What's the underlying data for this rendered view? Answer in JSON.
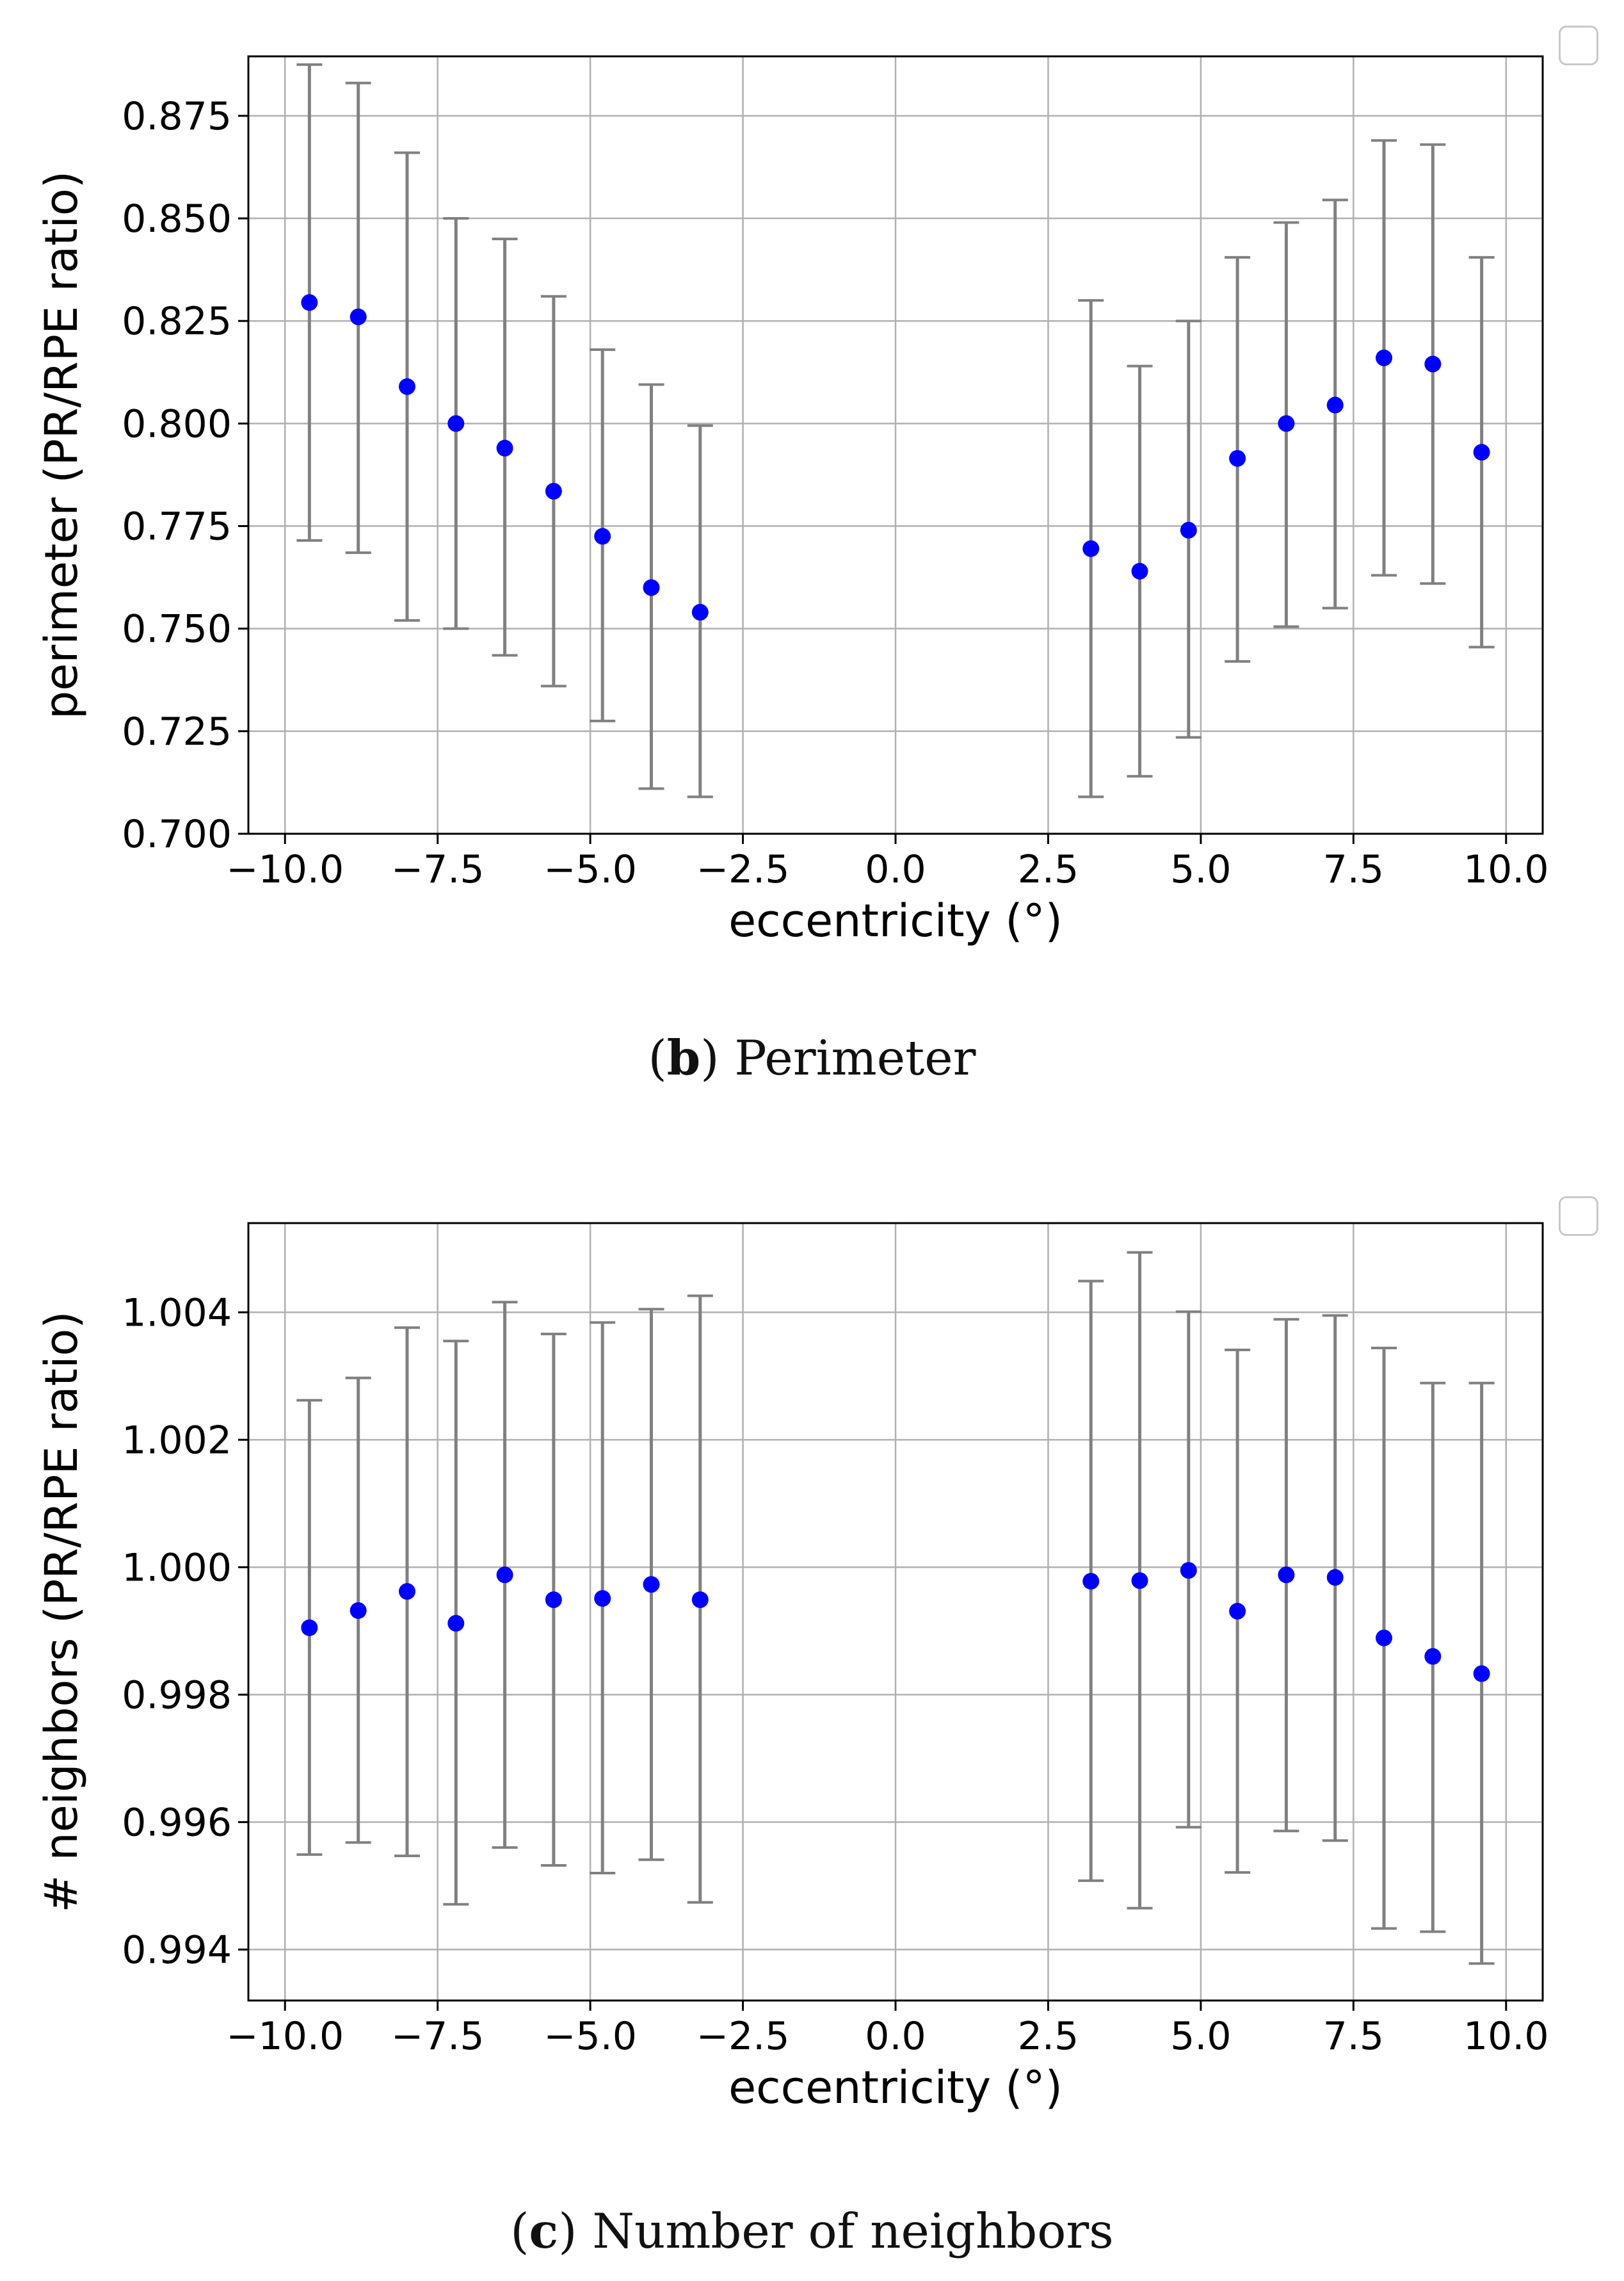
{
  "captions": [
    {
      "letter": "b",
      "text": " Perimeter"
    },
    {
      "letter": "c",
      "text": " Number of neighbors"
    }
  ],
  "chart_data": [
    {
      "type": "scatter",
      "xlabel": "eccentricity (°)",
      "ylabel": "perimeter (PR/RPE ratio)",
      "xlim": [
        -10.6,
        10.6
      ],
      "ylim": [
        0.7,
        0.8895
      ],
      "xticks": [
        -10.0,
        -7.5,
        -5.0,
        -2.5,
        0.0,
        2.5,
        5.0,
        7.5,
        10.0
      ],
      "xtick_labels": [
        "−10.0",
        "−7.5",
        "−5.0",
        "−2.5",
        "0.0",
        "2.5",
        "5.0",
        "7.5",
        "10.0"
      ],
      "yticks": [
        0.7,
        0.725,
        0.75,
        0.775,
        0.8,
        0.825,
        0.85,
        0.875
      ],
      "ytick_labels": [
        "0.700",
        "0.725",
        "0.750",
        "0.775",
        "0.800",
        "0.825",
        "0.850",
        "0.875"
      ],
      "grid": true,
      "point_color": "#0000ff",
      "errorbar_color": "#808080",
      "x": [
        -9.6,
        -8.8,
        -8.0,
        -7.2,
        -6.4,
        -5.6,
        -4.8,
        -4.0,
        -3.2,
        3.2,
        4.0,
        4.8,
        5.6,
        6.4,
        7.2,
        8.0,
        8.8,
        9.6
      ],
      "y": [
        0.8295,
        0.826,
        0.809,
        0.8,
        0.794,
        0.7835,
        0.7725,
        0.76,
        0.754,
        0.7695,
        0.764,
        0.774,
        0.7915,
        0.8,
        0.8045,
        0.816,
        0.8145,
        0.793
      ],
      "y_low": [
        0.7715,
        0.7685,
        0.752,
        0.75,
        0.7435,
        0.736,
        0.7275,
        0.711,
        0.709,
        0.709,
        0.714,
        0.7235,
        0.742,
        0.7505,
        0.755,
        0.763,
        0.761,
        0.7455
      ],
      "y_high": [
        0.8875,
        0.883,
        0.866,
        0.85,
        0.845,
        0.831,
        0.818,
        0.8095,
        0.7995,
        0.83,
        0.814,
        0.825,
        0.8405,
        0.849,
        0.8545,
        0.869,
        0.868,
        0.8405
      ]
    },
    {
      "type": "scatter",
      "xlabel": "eccentricity (°)",
      "ylabel": "# neighbors (PR/RPE ratio)",
      "xlim": [
        -10.6,
        10.6
      ],
      "ylim": [
        0.9932,
        1.0054
      ],
      "xticks": [
        -10.0,
        -7.5,
        -5.0,
        -2.5,
        0.0,
        2.5,
        5.0,
        7.5,
        10.0
      ],
      "xtick_labels": [
        "−10.0",
        "−7.5",
        "−5.0",
        "−2.5",
        "0.0",
        "2.5",
        "5.0",
        "7.5",
        "10.0"
      ],
      "yticks": [
        0.994,
        0.996,
        0.998,
        1.0,
        1.002,
        1.004
      ],
      "ytick_labels": [
        "0.994",
        "0.996",
        "0.998",
        "1.000",
        "1.002",
        "1.004"
      ],
      "grid": true,
      "point_color": "#0000ff",
      "errorbar_color": "#808080",
      "x": [
        -9.6,
        -8.8,
        -8.0,
        -7.2,
        -6.4,
        -5.6,
        -4.8,
        -4.0,
        -3.2,
        3.2,
        4.0,
        4.8,
        5.6,
        6.4,
        7.2,
        8.0,
        8.8,
        9.6
      ],
      "y": [
        0.99905,
        0.99932,
        0.99962,
        0.99912,
        0.99988,
        0.99949,
        0.99951,
        0.99973,
        0.99949,
        0.99978,
        0.99979,
        0.99995,
        0.99931,
        0.99988,
        0.99984,
        0.99889,
        0.9986,
        0.99833
      ],
      "y_low": [
        0.99549,
        0.99568,
        0.99547,
        0.99471,
        0.9956,
        0.99532,
        0.9952,
        0.99541,
        0.99474,
        0.99508,
        0.99465,
        0.99592,
        0.99521,
        0.99586,
        0.99571,
        0.99433,
        0.99428,
        0.99378
      ],
      "y_high": [
        1.00262,
        1.00297,
        1.00376,
        1.00355,
        1.00416,
        1.00366,
        1.00384,
        1.00405,
        1.00426,
        1.00449,
        1.00494,
        1.00401,
        1.00341,
        1.00389,
        1.00395,
        1.00344,
        1.00289,
        1.00289
      ]
    }
  ]
}
